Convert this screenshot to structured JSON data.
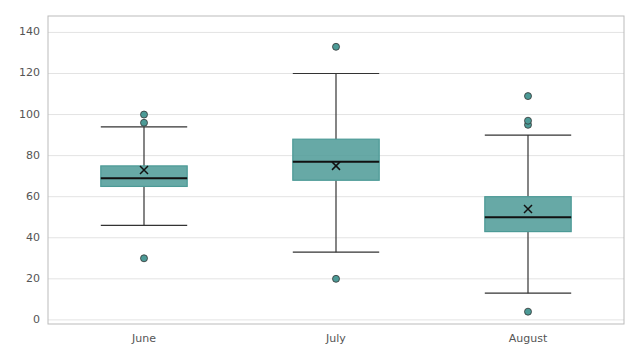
{
  "chart_data": {
    "type": "box",
    "categories": [
      "June",
      "July",
      "August"
    ],
    "q1": [
      65,
      68,
      43
    ],
    "median": [
      69,
      77,
      50
    ],
    "q3": [
      75,
      88,
      60
    ],
    "mean": [
      73,
      75,
      54
    ],
    "whisker_low": [
      46,
      33,
      13
    ],
    "whisker_high": [
      94,
      120,
      90
    ],
    "fliers": [
      [
        30,
        96,
        100
      ],
      [
        20,
        133
      ],
      [
        4,
        95,
        97,
        109
      ]
    ],
    "color": "#4C9A96",
    "marker": "x",
    "ylim": [
      -2,
      148
    ],
    "yticks": [
      0,
      20,
      40,
      60,
      80,
      100,
      120,
      140
    ],
    "grid": true
  }
}
